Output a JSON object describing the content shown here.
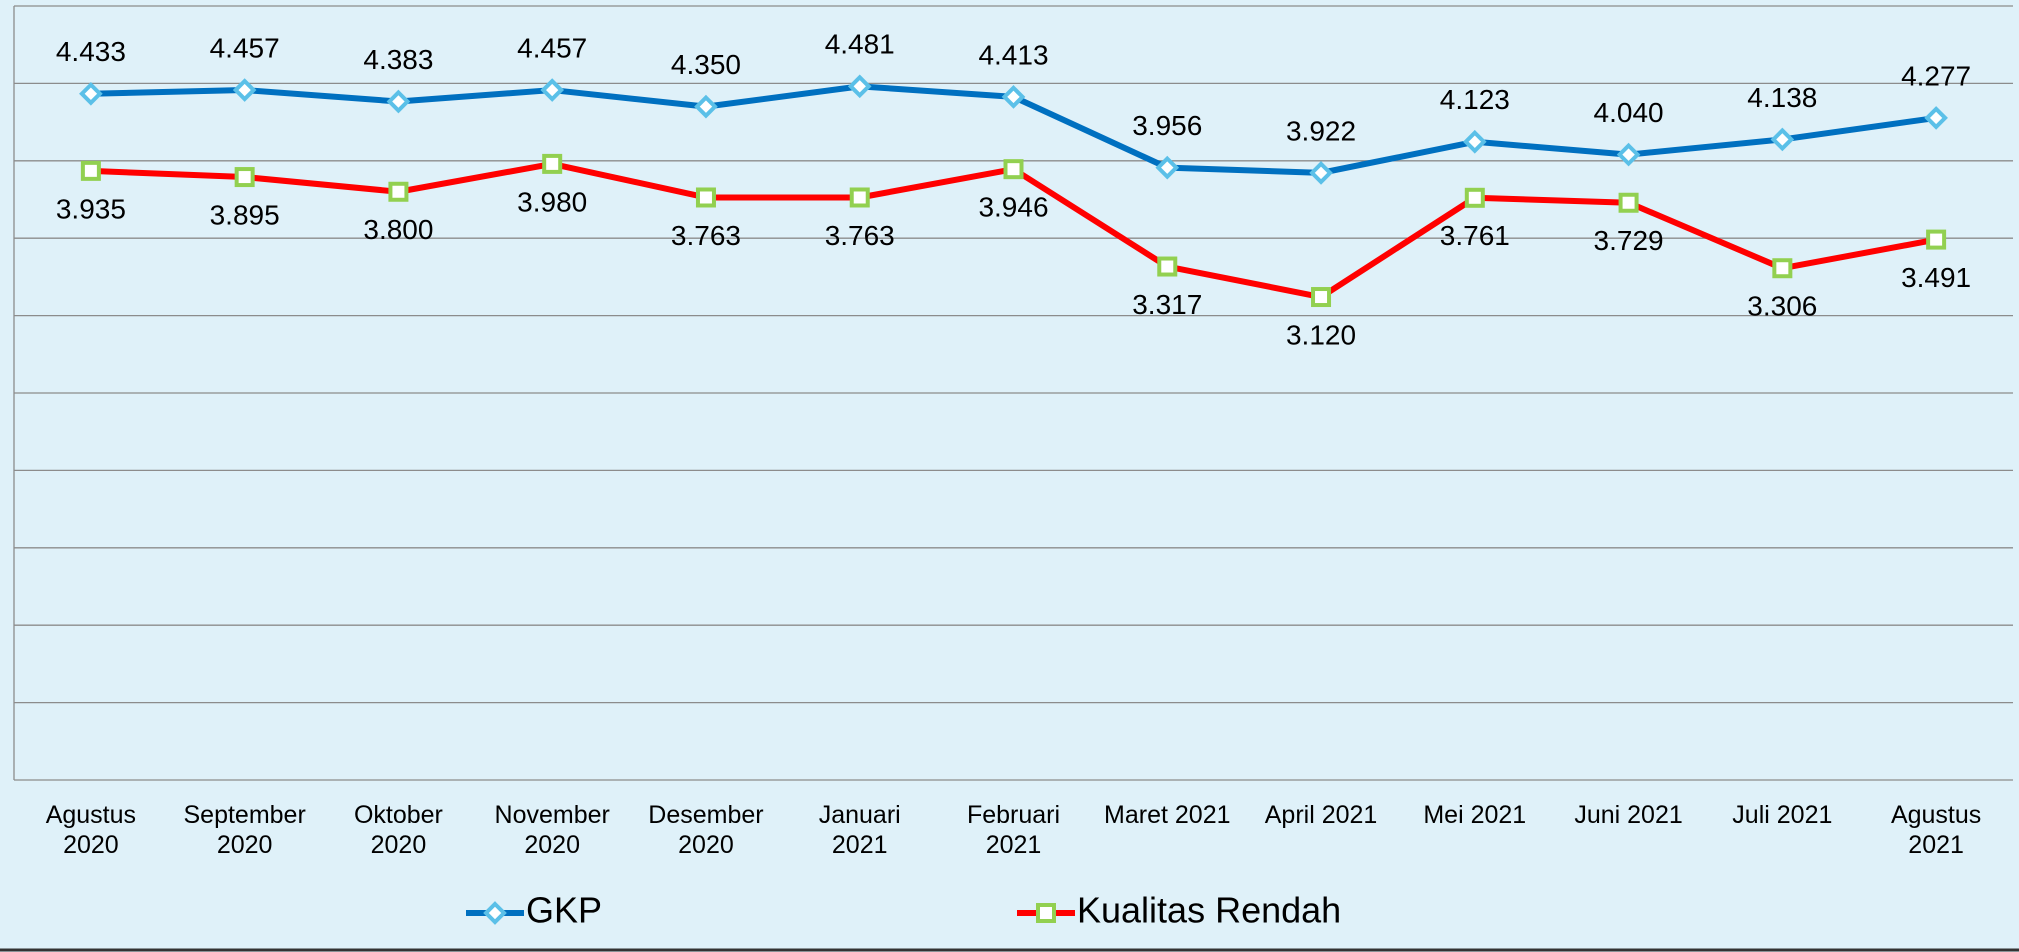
{
  "chart_data": {
    "type": "line",
    "categories": [
      "Agustus 2020",
      "September 2020",
      "Oktober 2020",
      "November 2020",
      "Desember 2020",
      "Januari 2021",
      "Februari 2021",
      "Maret 2021",
      "April 2021",
      "Mei 2021",
      "Juni 2021",
      "Juli 2021",
      "Agustus 2021"
    ],
    "series": [
      {
        "name": "GKP",
        "color": "#0070c0",
        "marker": "diamond",
        "marker_color": "#5bc0e8",
        "label_position": "above",
        "values": [
          4.433,
          4.457,
          4.383,
          4.457,
          4.35,
          4.481,
          4.413,
          3.956,
          3.922,
          4.123,
          4.04,
          4.138,
          4.277
        ],
        "value_labels": [
          "4.433",
          "4.457",
          "4.383",
          "4.457",
          "4.350",
          "4.481",
          "4.413",
          "3.956",
          "3.922",
          "4.123",
          "4.040",
          "4.138",
          "4.277"
        ]
      },
      {
        "name": "Kualitas Rendah",
        "color": "#ff0000",
        "marker": "square",
        "marker_color": "#92d050",
        "label_position": "below",
        "values": [
          3.935,
          3.895,
          3.8,
          3.98,
          3.763,
          3.763,
          3.946,
          3.317,
          3.12,
          3.761,
          3.729,
          3.306,
          3.491
        ],
        "value_labels": [
          "3.935",
          "3.895",
          "3.800",
          "3.980",
          "3.763",
          "3.763",
          "3.946",
          "3.317",
          "3.120",
          "3.761",
          "3.729",
          "3.306",
          "3.491"
        ]
      }
    ],
    "ylim": [
      0,
      5
    ],
    "yticks": [
      0,
      0.5,
      1,
      1.5,
      2,
      2.5,
      3,
      3.5,
      4,
      4.5,
      5
    ],
    "show_tick_labels": false,
    "grid": true,
    "legend": "bottom"
  }
}
